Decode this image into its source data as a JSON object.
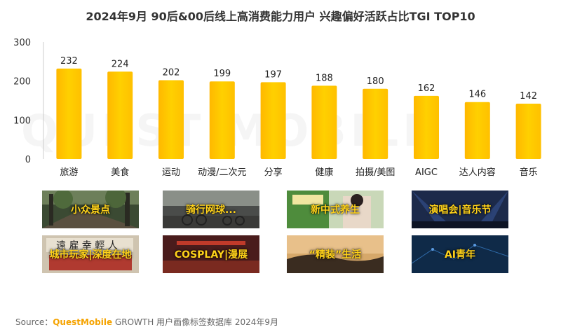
{
  "title": "2024年9月 90后&00后线上高消费能力用户 兴趣偏好活跃占比TGI TOP10",
  "watermark": "QUEST MOBILE",
  "colors": {
    "bar": "#ffc800",
    "bar_highlight": "#ffe14d",
    "label": "#ffd21a",
    "axis": "#cccccc"
  },
  "chart_data": {
    "type": "bar",
    "categories": [
      "旅游",
      "美食",
      "运动",
      "动漫/二次元",
      "分享",
      "健康",
      "拍摄/美图",
      "AIGC",
      "达人内容",
      "音乐"
    ],
    "values": [
      232,
      224,
      202,
      199,
      197,
      188,
      180,
      162,
      146,
      142
    ],
    "ylim": [
      0,
      300
    ],
    "yticks": [
      0,
      100,
      200,
      300
    ],
    "grid": false
  },
  "tiles": [
    {
      "label": "小众景点",
      "scene": "forest-path"
    },
    {
      "label": "骑行网球...",
      "scene": "cycling-road"
    },
    {
      "label": "新中式养生",
      "scene": "wellness-shop"
    },
    {
      "label": "演唱会|音乐节",
      "scene": "concert-stage"
    },
    {
      "label": "城市玩家|深度在地",
      "scene": "city-signs"
    },
    {
      "label": "COSPLAY|漫展",
      "scene": "cosplay-expo"
    },
    {
      "label": "“精装”生活",
      "scene": "sunset-landscape"
    },
    {
      "label": "AI青年",
      "scene": "tech-blue"
    }
  ],
  "source": {
    "prefix": "Source：",
    "brand": "QuestMobile",
    "rest": " GROWTH 用户画像标签数据库 2024年9月"
  }
}
